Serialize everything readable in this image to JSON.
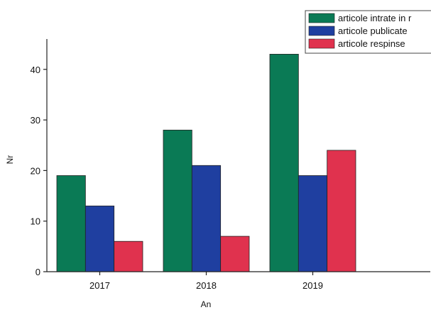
{
  "chart_data": {
    "type": "bar",
    "title": "",
    "xlabel": "An",
    "ylabel": "Nr",
    "categories": [
      "2017",
      "2018",
      "2019"
    ],
    "series": [
      {
        "name": "articole intrate in r",
        "color": "#0a7a55",
        "values": [
          19,
          28,
          43
        ]
      },
      {
        "name": "articole publicate",
        "color": "#1f3fa0",
        "values": [
          13,
          21,
          19
        ]
      },
      {
        "name": "articole respinse",
        "color": "#e0324e",
        "values": [
          6,
          7,
          24
        ]
      }
    ],
    "ylim": [
      0,
      46
    ],
    "yticks": [
      0,
      10,
      20,
      30,
      40
    ],
    "grid": false,
    "legend_position": "top-right"
  }
}
